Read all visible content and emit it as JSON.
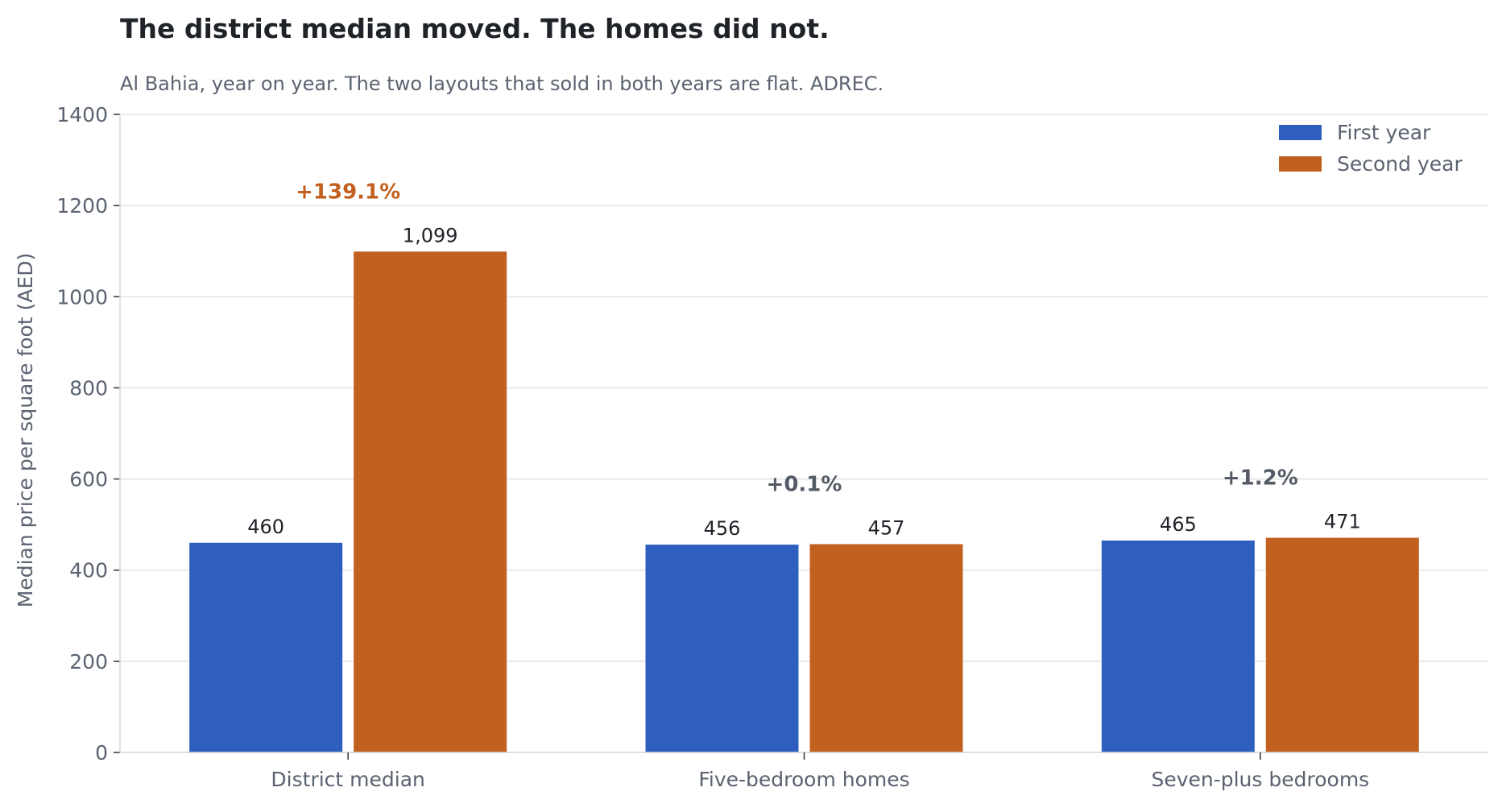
{
  "title": "The district median moved. The homes did not.",
  "subtitle": "Al Bahia, year on year. The two layouts that sold in both years are flat. ADREC.",
  "chart_data": {
    "type": "bar",
    "categories": [
      "District median",
      "Five-bedroom homes",
      "Seven-plus bedrooms"
    ],
    "series": [
      {
        "name": "First year",
        "values": [
          460,
          456,
          465
        ],
        "color": "#2f5fbe"
      },
      {
        "name": "Second year",
        "values": [
          1099,
          457,
          471
        ],
        "color": "#c2611f"
      }
    ],
    "value_labels": [
      [
        "460",
        "456",
        "465"
      ],
      [
        "1,099",
        "457",
        "471"
      ]
    ],
    "changes": [
      {
        "label": "+139.1%",
        "color": "#c2611f"
      },
      {
        "label": "+0.1%",
        "color": "#545b66"
      },
      {
        "label": "+1.2%",
        "color": "#545b66"
      }
    ],
    "xlabel": "",
    "ylabel": "Median price per square foot (AED)",
    "ylim": [
      0,
      1400
    ],
    "yticks": [
      0,
      200,
      400,
      600,
      800,
      1000,
      1200,
      1400
    ],
    "grid": true,
    "legend_position": "top-right"
  }
}
